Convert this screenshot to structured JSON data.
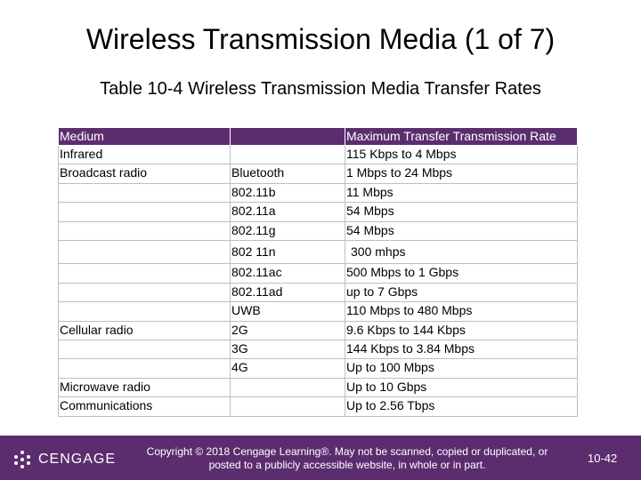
{
  "slide": {
    "title": "Wireless Transmission Media (1 of 7)",
    "subtitle": "Table 10-4 Wireless Transmission Media Transfer Rates"
  },
  "table": {
    "headers": [
      "Medium",
      "",
      "Maximum Transfer Transmission Rate"
    ],
    "rows": [
      [
        "Infrared",
        "",
        "115 Kbps to 4 Mbps"
      ],
      [
        "Broadcast radio",
        "Bluetooth",
        "1 Mbps to 24 Mbps"
      ],
      [
        "",
        "802.11b",
        "11 Mbps"
      ],
      [
        "",
        "802.11a",
        "54 Mbps"
      ],
      [
        "",
        "802.11g",
        "54 Mbps"
      ],
      [
        "",
        "802 11n",
        "300 mhps"
      ],
      [
        "",
        "802.11ac",
        "500 Mbps to 1 Gbps"
      ],
      [
        "",
        "802.11ad",
        "up to 7 Gbps"
      ],
      [
        "",
        "UWB",
        "110 Mbps to 480 Mbps"
      ],
      [
        "Cellular radio",
        "2G",
        "9.6 Kbps to 144 Kbps"
      ],
      [
        "",
        "3G",
        "144 Kbps to 3.84 Mbps"
      ],
      [
        "",
        "4G",
        "Up to 100 Mbps"
      ],
      [
        "Microwave radio",
        "",
        "Up to 10 Gbps"
      ],
      [
        "Communications",
        "",
        "Up to 2.56 Tbps"
      ]
    ]
  },
  "footer": {
    "logo_text": "CENGAGE",
    "copyright": "Copyright © 2018 Cengage Learning®. May not be scanned, copied or duplicated, or posted to a publicly accessible website, in whole or in part.",
    "page_number": "10-42",
    "colors": {
      "band": "#5c2d6e",
      "header": "#5c2d6e",
      "text_light": "#ffffff"
    }
  }
}
